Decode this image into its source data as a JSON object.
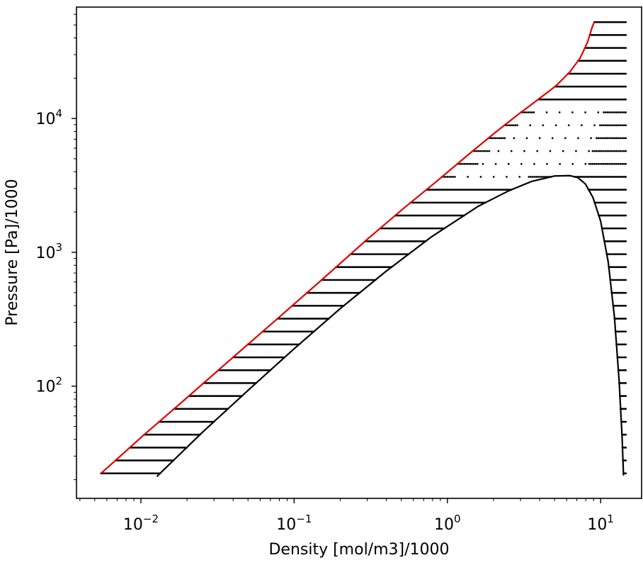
{
  "chart_data": {
    "type": "scatter",
    "title": "",
    "xlabel": "Density [mol/m3]/1000",
    "ylabel": "Pressure [Pa]/1000",
    "xscale": "log",
    "yscale": "log",
    "xlim": [
      0.0038,
      18.5
    ],
    "ylim": [
      14.5,
      68000
    ],
    "grid": false,
    "legend": "none",
    "x_ticks": [
      {
        "value": 0.01,
        "base": "10",
        "exp": "−2"
      },
      {
        "value": 0.1,
        "base": "10",
        "exp": "−1"
      },
      {
        "value": 1,
        "base": "10",
        "exp": "0"
      },
      {
        "value": 10,
        "base": "10",
        "exp": "1"
      }
    ],
    "y_ticks": [
      {
        "value": 100,
        "base": "10",
        "exp": "2"
      },
      {
        "value": 1000,
        "base": "10",
        "exp": "3"
      },
      {
        "value": 10000,
        "base": "10",
        "exp": "4"
      }
    ],
    "series": [
      {
        "kind": "line",
        "color": "#e00000",
        "points": [
          [
            0.0055,
            22.3
          ],
          [
            0.0103,
            42.5
          ],
          [
            0.0195,
            80
          ],
          [
            0.0394,
            162
          ],
          [
            0.079,
            324
          ],
          [
            0.157,
            646
          ],
          [
            0.295,
            1230
          ],
          [
            0.52,
            2140
          ],
          [
            0.84,
            3350
          ],
          [
            1.37,
            5370
          ],
          [
            2.05,
            7850
          ],
          [
            2.89,
            10700
          ],
          [
            3.9,
            13850
          ],
          [
            5.1,
            17500
          ],
          [
            6.3,
            22300
          ],
          [
            7.35,
            28300
          ],
          [
            8.2,
            37000
          ],
          [
            8.85,
            49000
          ],
          [
            9.1,
            52500
          ]
        ]
      },
      {
        "kind": "line",
        "color": "#000000",
        "points": [
          [
            0.0127,
            21.1
          ],
          [
            0.0251,
            45
          ],
          [
            0.05,
            93
          ],
          [
            0.0999,
            190
          ],
          [
            0.2,
            380
          ],
          [
            0.4,
            725
          ],
          [
            0.791,
            1310
          ],
          [
            1.58,
            2200
          ],
          [
            2.51,
            2880
          ],
          [
            3.55,
            3390
          ],
          [
            5.01,
            3720
          ],
          [
            6.31,
            3740
          ],
          [
            7.08,
            3620
          ],
          [
            7.94,
            3250
          ],
          [
            8.91,
            2570
          ],
          [
            10,
            1710
          ],
          [
            11.2,
            850
          ],
          [
            12.3,
            330
          ],
          [
            13.2,
            110
          ],
          [
            13.8,
            42
          ],
          [
            14.1,
            21.5
          ]
        ]
      },
      {
        "kind": "isobars",
        "color": "#000000",
        "pmin": 22.3,
        "pmax": 52500,
        "count": 36,
        "xmax": 14.6,
        "sparse_region": {
          "pmin": 3500,
          "pmax": 13500
        }
      }
    ]
  }
}
